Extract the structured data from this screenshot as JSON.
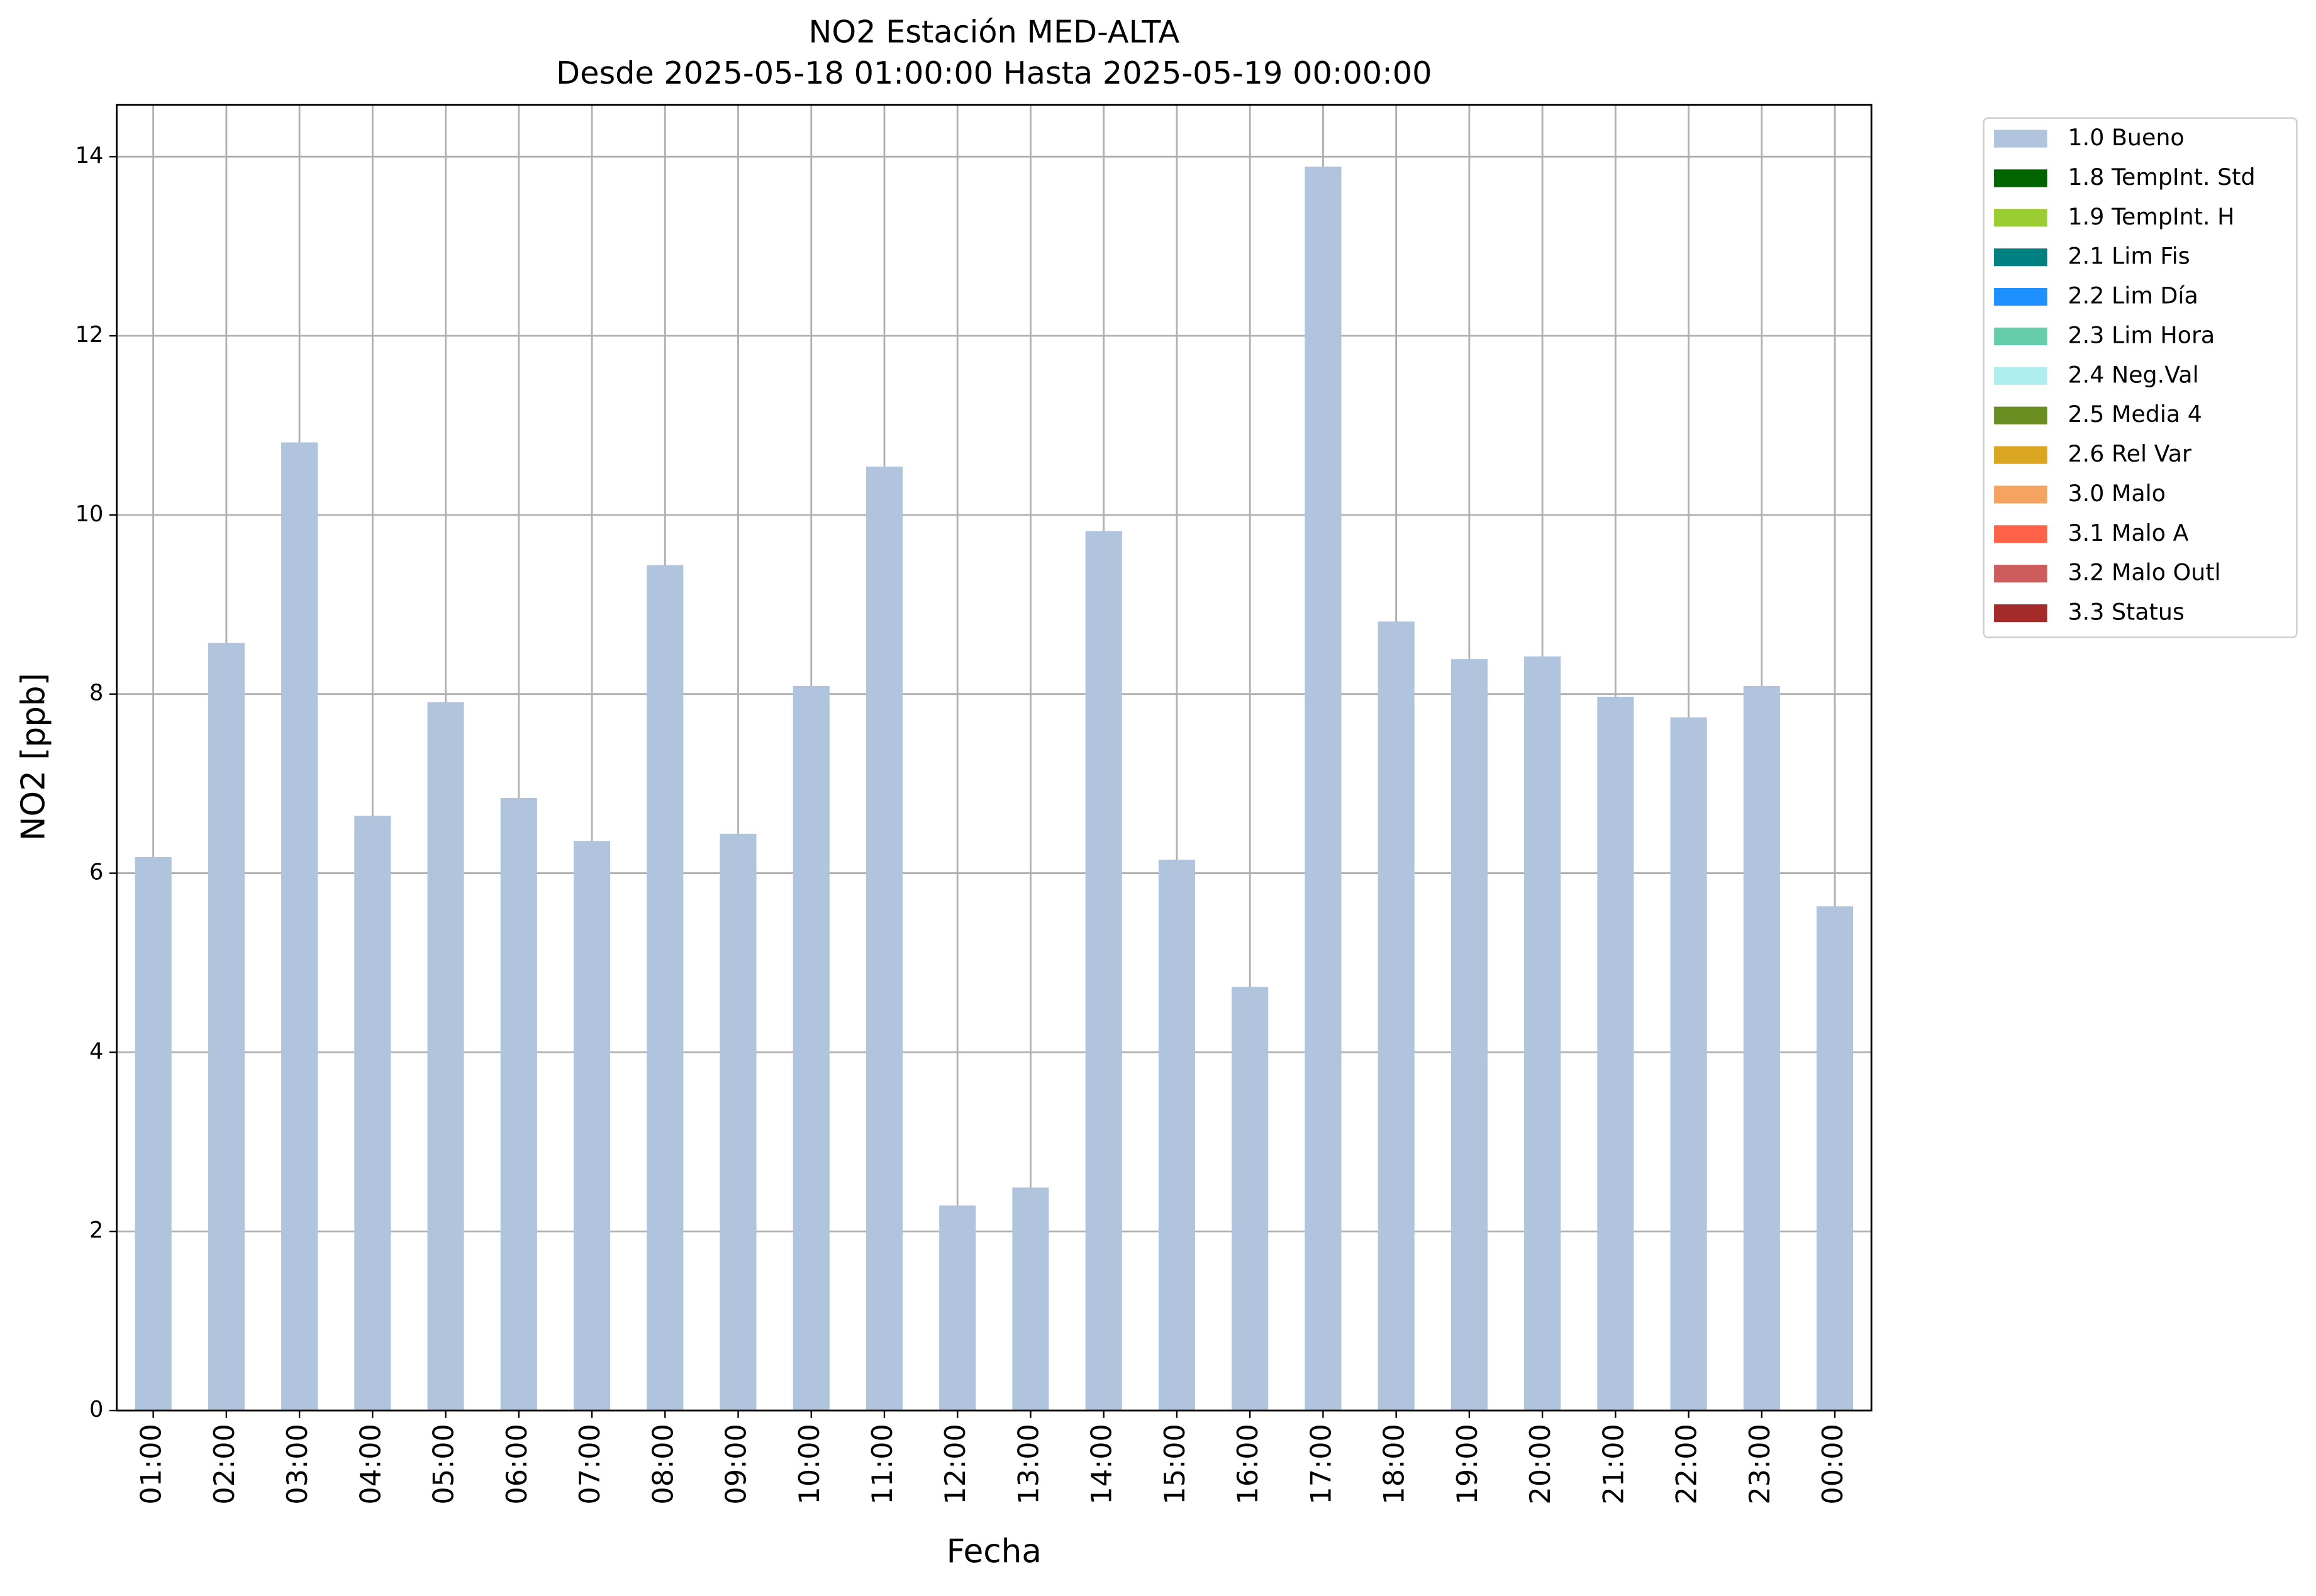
{
  "chart_data": {
    "type": "bar",
    "stacked": true,
    "title": "NO2 Estación MED-ALTA",
    "subtitle": "Desde 2025-05-18 01:00:00 Hasta 2025-05-19 00:00:00",
    "xlabel": "Fecha",
    "ylabel": "NO2 [ppb]",
    "categories": [
      "01:00",
      "02:00",
      "03:00",
      "04:00",
      "05:00",
      "06:00",
      "07:00",
      "08:00",
      "09:00",
      "10:00",
      "11:00",
      "12:00",
      "13:00",
      "14:00",
      "15:00",
      "16:00",
      "17:00",
      "18:00",
      "19:00",
      "20:00",
      "21:00",
      "22:00",
      "23:00",
      "00:00"
    ],
    "series": [
      {
        "name": "1.0 Bueno",
        "color": "#b0c4de",
        "values": [
          6.18,
          8.57,
          10.81,
          6.64,
          7.91,
          6.84,
          6.36,
          9.44,
          6.44,
          8.09,
          10.54,
          2.29,
          2.49,
          9.82,
          6.15,
          4.73,
          13.89,
          8.81,
          8.39,
          8.42,
          7.97,
          7.74,
          8.09,
          5.63
        ]
      },
      {
        "name": "1.8 TempInt. Std",
        "color": "#006400",
        "values": [
          0,
          0,
          0,
          0,
          0,
          0,
          0,
          0,
          0,
          0,
          0,
          0,
          0,
          0,
          0,
          0,
          0,
          0,
          0,
          0,
          0,
          0,
          0,
          0
        ]
      },
      {
        "name": "1.9 TempInt. H",
        "color": "#9acd32",
        "values": [
          0,
          0,
          0,
          0,
          0,
          0,
          0,
          0,
          0,
          0,
          0,
          0,
          0,
          0,
          0,
          0,
          0,
          0,
          0,
          0,
          0,
          0,
          0,
          0
        ]
      },
      {
        "name": "2.1 Lim Fis",
        "color": "#008080",
        "values": [
          0,
          0,
          0,
          0,
          0,
          0,
          0,
          0,
          0,
          0,
          0,
          0,
          0,
          0,
          0,
          0,
          0,
          0,
          0,
          0,
          0,
          0,
          0,
          0
        ]
      },
      {
        "name": "2.2 Lim Día",
        "color": "#1e90ff",
        "values": [
          0,
          0,
          0,
          0,
          0,
          0,
          0,
          0,
          0,
          0,
          0,
          0,
          0,
          0,
          0,
          0,
          0,
          0,
          0,
          0,
          0,
          0,
          0,
          0
        ]
      },
      {
        "name": "2.3 Lim Hora",
        "color": "#66cdaa",
        "values": [
          0,
          0,
          0,
          0,
          0,
          0,
          0,
          0,
          0,
          0,
          0,
          0,
          0,
          0,
          0,
          0,
          0,
          0,
          0,
          0,
          0,
          0,
          0,
          0
        ]
      },
      {
        "name": "2.4 Neg.Val",
        "color": "#afeeee",
        "values": [
          0,
          0,
          0,
          0,
          0,
          0,
          0,
          0,
          0,
          0,
          0,
          0,
          0,
          0,
          0,
          0,
          0,
          0,
          0,
          0,
          0,
          0,
          0,
          0
        ]
      },
      {
        "name": "2.5 Media 4",
        "color": "#6b8e23",
        "values": [
          0,
          0,
          0,
          0,
          0,
          0,
          0,
          0,
          0,
          0,
          0,
          0,
          0,
          0,
          0,
          0,
          0,
          0,
          0,
          0,
          0,
          0,
          0,
          0
        ]
      },
      {
        "name": "2.6 Rel Var",
        "color": "#daa520",
        "values": [
          0,
          0,
          0,
          0,
          0,
          0,
          0,
          0,
          0,
          0,
          0,
          0,
          0,
          0,
          0,
          0,
          0,
          0,
          0,
          0,
          0,
          0,
          0,
          0
        ]
      },
      {
        "name": "3.0 Malo",
        "color": "#f4a460",
        "values": [
          0,
          0,
          0,
          0,
          0,
          0,
          0,
          0,
          0,
          0,
          0,
          0,
          0,
          0,
          0,
          0,
          0,
          0,
          0,
          0,
          0,
          0,
          0,
          0
        ]
      },
      {
        "name": "3.1 Malo A",
        "color": "#ff6347",
        "values": [
          0,
          0,
          0,
          0,
          0,
          0,
          0,
          0,
          0,
          0,
          0,
          0,
          0,
          0,
          0,
          0,
          0,
          0,
          0,
          0,
          0,
          0,
          0,
          0
        ]
      },
      {
        "name": "3.2 Malo Outl",
        "color": "#cd5c5c",
        "values": [
          0,
          0,
          0,
          0,
          0,
          0,
          0,
          0,
          0,
          0,
          0,
          0,
          0,
          0,
          0,
          0,
          0,
          0,
          0,
          0,
          0,
          0,
          0,
          0
        ]
      },
      {
        "name": "3.3 Status",
        "color": "#a52a2a",
        "values": [
          0,
          0,
          0,
          0,
          0,
          0,
          0,
          0,
          0,
          0,
          0,
          0,
          0,
          0,
          0,
          0,
          0,
          0,
          0,
          0,
          0,
          0,
          0,
          0
        ]
      }
    ],
    "ylim": [
      0,
      14.58
    ],
    "yticks": [
      0,
      2,
      4,
      6,
      8,
      10,
      12,
      14
    ],
    "grid": true,
    "legend": "outside-upper-right"
  }
}
